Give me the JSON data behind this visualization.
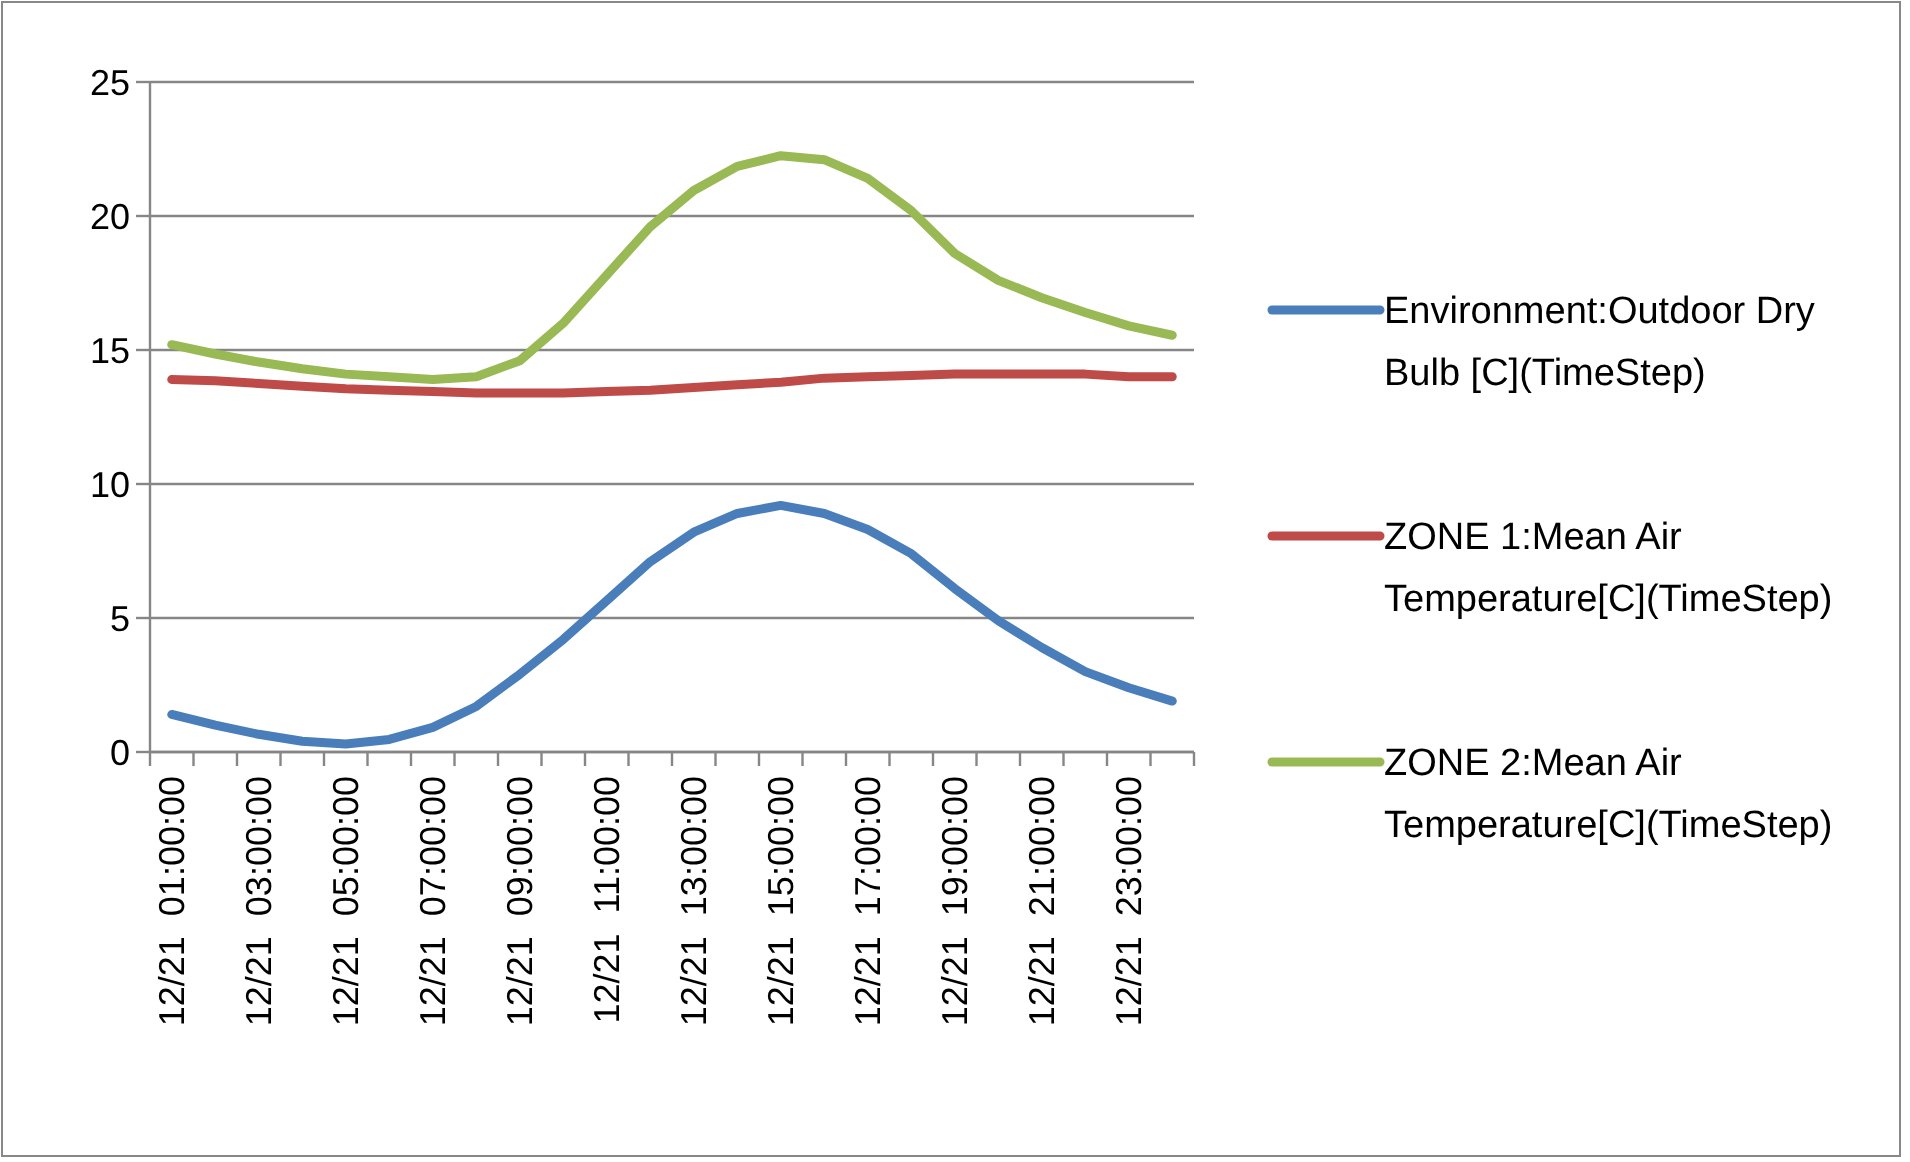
{
  "chart_data": {
    "type": "line",
    "categories": [
      "12/21  01:00:00",
      null,
      "12/21  03:00:00",
      null,
      "12/21  05:00:00",
      null,
      "12/21  07:00:00",
      null,
      "12/21  09:00:00",
      null,
      "12/21  11:00:00",
      null,
      "12/21  13:00:00",
      null,
      "12/21  15:00:00",
      null,
      "12/21  17:00:00",
      null,
      "12/21  19:00:00",
      null,
      "12/21  21:00:00",
      null,
      "12/21  23:00:00",
      null
    ],
    "series": [
      {
        "name": "Environment:Outdoor Dry Bulb [C](TimeStep)",
        "color": "#4a7ebb",
        "values": [
          1.4,
          1.0,
          0.66,
          0.4,
          0.3,
          0.47,
          0.92,
          1.7,
          2.9,
          4.2,
          5.65,
          7.1,
          8.2,
          8.9,
          9.2,
          8.9,
          8.3,
          7.4,
          6.1,
          4.9,
          3.9,
          3.0,
          2.4,
          1.9
        ]
      },
      {
        "name": "ZONE 1:Mean Air Temperature[C](TimeStep)",
        "color": "#be4b48",
        "values": [
          13.9,
          13.85,
          13.75,
          13.65,
          13.55,
          13.5,
          13.45,
          13.4,
          13.4,
          13.4,
          13.45,
          13.5,
          13.6,
          13.7,
          13.8,
          13.95,
          14.0,
          14.05,
          14.1,
          14.1,
          14.1,
          14.1,
          14.0,
          14.0
        ]
      },
      {
        "name": "ZONE 2:Mean Air Temperature[C](TimeStep)",
        "color": "#98b954",
        "values": [
          15.2,
          14.85,
          14.55,
          14.3,
          14.1,
          14.0,
          13.9,
          14.0,
          14.6,
          16.0,
          17.8,
          19.6,
          20.95,
          21.85,
          22.25,
          22.1,
          21.4,
          20.2,
          18.6,
          17.6,
          16.95,
          16.4,
          15.9,
          15.55
        ]
      }
    ],
    "ylim": [
      0,
      25
    ],
    "yticks": [
      0,
      5,
      10,
      15,
      20,
      25
    ],
    "grid": "y",
    "legend": "right",
    "marker": "none",
    "line_style": "solid"
  }
}
